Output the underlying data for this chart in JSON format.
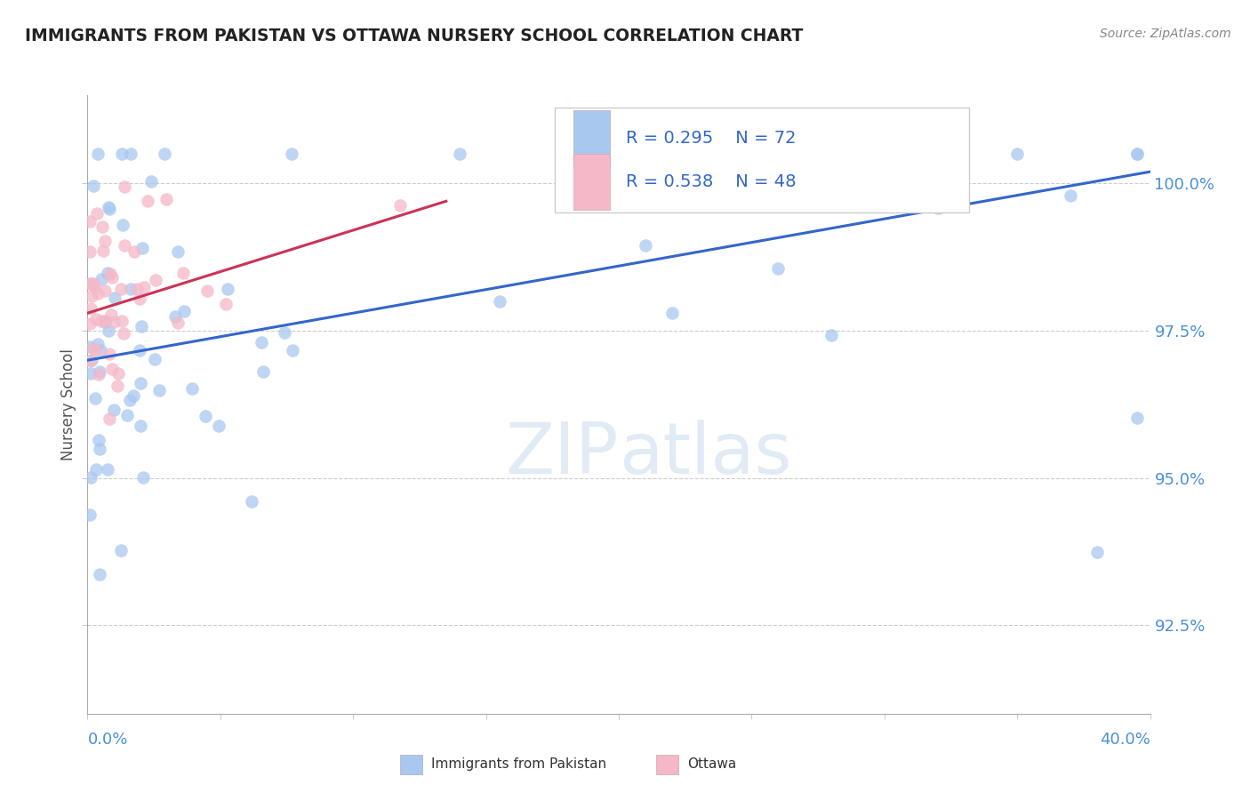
{
  "title": "IMMIGRANTS FROM PAKISTAN VS OTTAWA NURSERY SCHOOL CORRELATION CHART",
  "source": "Source: ZipAtlas.com",
  "ylabel": "Nursery School",
  "ytick_labels": [
    "92.5%",
    "95.0%",
    "97.5%",
    "100.0%"
  ],
  "ytick_values": [
    0.925,
    0.95,
    0.975,
    1.0
  ],
  "xmin": 0.0,
  "xmax": 0.4,
  "ymin": 0.91,
  "ymax": 1.015,
  "legend_r1": "R = 0.295",
  "legend_n1": "N = 72",
  "legend_r2": "R = 0.538",
  "legend_n2": "N = 48",
  "color_blue": "#a8c8f0",
  "color_pink": "#f5b8c8",
  "color_blue_line": "#3366cc",
  "color_pink_line": "#cc3355",
  "legend_bottom_label1": "Immigrants from Pakistan",
  "legend_bottom_label2": "Ottawa",
  "blue_trend_x": [
    0.0,
    0.4
  ],
  "blue_trend_y": [
    0.97,
    1.002
  ],
  "pink_trend_x": [
    0.0,
    0.135
  ],
  "pink_trend_y": [
    0.978,
    0.997
  ],
  "watermark_zip": "ZIP",
  "watermark_atlas": "atlas"
}
